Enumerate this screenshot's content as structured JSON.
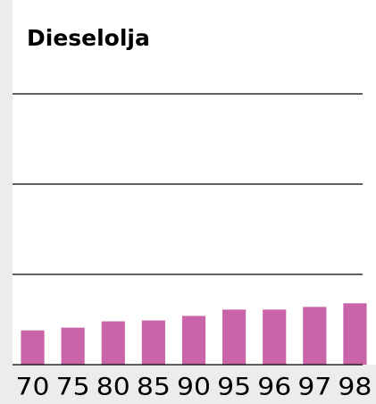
{
  "chart_data": {
    "type": "bar",
    "title": "Dieselolja",
    "categories": [
      "70",
      "75",
      "80",
      "85",
      "90",
      "95",
      "96",
      "97",
      "98"
    ],
    "values": [
      0.38,
      0.41,
      0.48,
      0.49,
      0.54,
      0.61,
      0.61,
      0.64,
      0.68
    ],
    "color": "#c964a8",
    "ylim": [
      0,
      3
    ],
    "yticks": [
      0,
      1,
      2,
      3
    ],
    "grid": true
  }
}
